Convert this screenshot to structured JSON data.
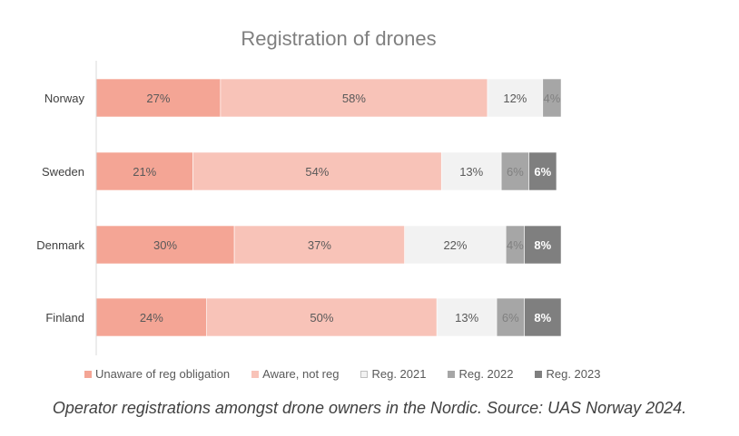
{
  "chart_data": {
    "type": "bar",
    "orientation": "horizontal",
    "stacked": true,
    "title": "Registration of drones",
    "categories": [
      "Norway",
      "Sweden",
      "Denmark",
      "Finland"
    ],
    "series": [
      {
        "name": "Unaware of reg obligation",
        "color": "#f4a595",
        "label_color": "#595959",
        "values": [
          27,
          21,
          30,
          24
        ],
        "labels": [
          "27%",
          "21%",
          "30%",
          "24%"
        ]
      },
      {
        "name": "Aware, not reg",
        "color": "#f8c3b8",
        "label_color": "#595959",
        "values": [
          58,
          54,
          37,
          50
        ],
        "labels": [
          "58%",
          "54%",
          "37%",
          "50%"
        ]
      },
      {
        "name": "Reg. 2021",
        "color": "#f2f2f2",
        "label_color": "#595959",
        "values": [
          12,
          13,
          22,
          13
        ],
        "labels": [
          "12%",
          "13%",
          "22%",
          "13%"
        ]
      },
      {
        "name": "Reg. 2022",
        "color": "#a6a6a6",
        "label_color": "#808080",
        "values": [
          4,
          6,
          4,
          6
        ],
        "labels": [
          "4%",
          "6%",
          "4%",
          "6%"
        ]
      },
      {
        "name": "Reg. 2023",
        "color": "#7f7f7f",
        "label_color": "#ffffff",
        "values": [
          0,
          6,
          8,
          8
        ],
        "labels": [
          "",
          "6%",
          "8%",
          "8%"
        ]
      }
    ],
    "legend_position": "bottom",
    "grid": false
  },
  "caption": "Operator registrations amongst drone owners in the Nordic. Source: UAS Norway 2024."
}
